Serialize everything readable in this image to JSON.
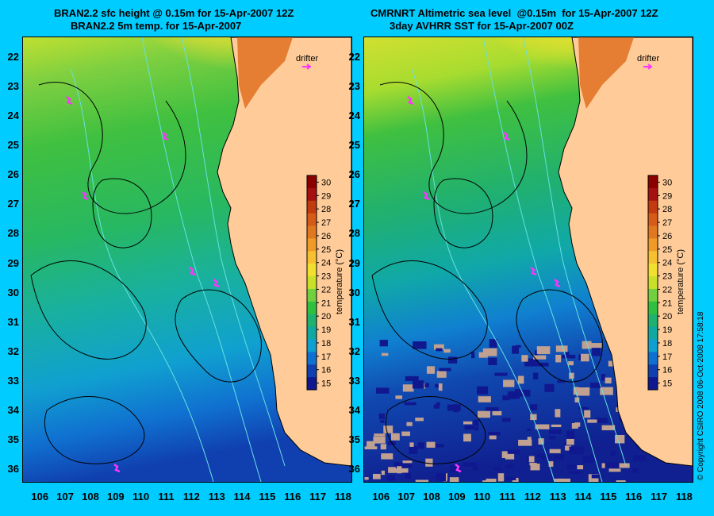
{
  "left_panel": {
    "title_line1": "BRAN2.2 sfc height @ 0.15m for 15-Apr-2007 12Z",
    "title_line2": "BRAN2.2 5m temp. for 15-Apr-2007",
    "drifter_label": "drifter"
  },
  "right_panel": {
    "title_line1": "CMRNRT Altimetric sea level  @0.15m  for 15-Apr-2007 12Z",
    "title_line2": "3day AVHRR SST for 15-Apr-2007 00Z",
    "drifter_label": "drifter"
  },
  "map": {
    "lat_labels": [
      "22",
      "23",
      "24",
      "25",
      "26",
      "27",
      "28",
      "29",
      "30",
      "31",
      "32",
      "33",
      "34",
      "35",
      "36"
    ],
    "lon_labels": [
      "106",
      "107",
      "108",
      "109",
      "110",
      "111",
      "112",
      "113",
      "114",
      "115",
      "116",
      "117",
      "118"
    ],
    "lat_range": [
      21.3,
      36.4
    ],
    "lon_range": [
      105.3,
      118.3
    ]
  },
  "colorbar": {
    "ticks": [
      "30",
      "29",
      "28",
      "27",
      "26",
      "25",
      "24",
      "23",
      "22",
      "21",
      "20",
      "19",
      "18",
      "17",
      "16",
      "15"
    ],
    "title": "temperature (°C)",
    "range": [
      14.5,
      30.5
    ],
    "colors": [
      "#8b0000",
      "#a51010",
      "#c23a10",
      "#d65a18",
      "#e07820",
      "#f09a28",
      "#f6c030",
      "#f2e030",
      "#c8e028",
      "#70d040",
      "#30c040",
      "#20b070",
      "#10a8a0",
      "#10a0d0",
      "#1070d0",
      "#1040b0",
      "#101890"
    ]
  },
  "copyright": "© Copyright CSIRO 2008   06-Oct-2008 17:58:18",
  "colors": {
    "background": "#00ccff",
    "land": "#ffcc99",
    "drifter": "#ff33ff",
    "contour": "#000000",
    "bathymetry": "#66e0e0"
  }
}
